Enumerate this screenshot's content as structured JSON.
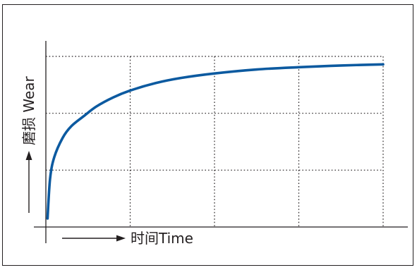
{
  "chart_data": {
    "type": "line",
    "title": "",
    "xlabel": "时间Time",
    "ylabel": "磨损 Wear",
    "x_ticks": [],
    "y_ticks": [],
    "grid": true,
    "grid_style": "dotted",
    "xlim": [
      0,
      4
    ],
    "ylim": [
      0,
      3
    ],
    "series": [
      {
        "name": "",
        "color": "#0c5aa0",
        "x": [
          0.02,
          0.05,
          0.1,
          0.2,
          0.3,
          0.45,
          0.6,
          0.8,
          1.0,
          1.3,
          1.6,
          2.0,
          2.5,
          3.0,
          3.5,
          4.0
        ],
        "y": [
          0.15,
          0.85,
          1.23,
          1.57,
          1.77,
          1.95,
          2.12,
          2.28,
          2.4,
          2.53,
          2.62,
          2.7,
          2.77,
          2.81,
          2.84,
          2.86
        ]
      }
    ]
  },
  "colors": {
    "axis": "#231f20",
    "grid": "#231f20",
    "frame": "#231f20",
    "curve": "#0c5aa0"
  }
}
